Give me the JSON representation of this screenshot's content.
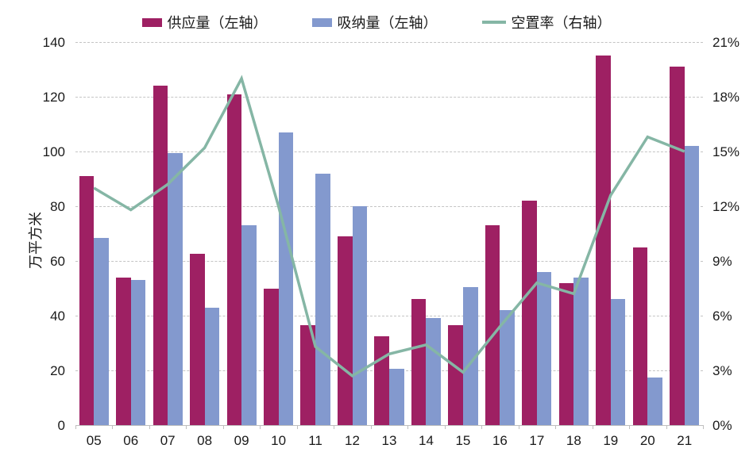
{
  "chart_data": {
    "type": "combo-bar-line",
    "title": "",
    "categories": [
      "05",
      "06",
      "07",
      "08",
      "09",
      "10",
      "11",
      "12",
      "13",
      "14",
      "15",
      "16",
      "17",
      "18",
      "19",
      "20",
      "21"
    ],
    "series": [
      {
        "name": "供应量（左轴）",
        "type": "bar",
        "axis": "left",
        "color": "#9E2063",
        "values": [
          91,
          54,
          124,
          62.5,
          121,
          50,
          36.5,
          69,
          32.5,
          46,
          36.5,
          73,
          82,
          52,
          135,
          65,
          131
        ]
      },
      {
        "name": "吸纳量（左轴）",
        "type": "bar",
        "axis": "left",
        "color": "#8399CE",
        "values": [
          68.5,
          53,
          99.5,
          43,
          73,
          107,
          92,
          80,
          20.5,
          39,
          50.5,
          42,
          56,
          54,
          46,
          17.5,
          102
        ]
      },
      {
        "name": "空置率（右轴）",
        "type": "line",
        "axis": "right",
        "color": "#85B6A5",
        "values": [
          13.0,
          11.8,
          13.2,
          15.2,
          19.0,
          12.0,
          4.3,
          2.7,
          3.9,
          4.4,
          2.9,
          5.4,
          7.8,
          7.2,
          12.6,
          15.8,
          15.0
        ]
      }
    ],
    "left_axis": {
      "label": "万平方米",
      "min": 0,
      "max": 140,
      "step": 20,
      "ticks": [
        "0",
        "20",
        "40",
        "60",
        "80",
        "100",
        "120",
        "140"
      ]
    },
    "right_axis": {
      "min": 0,
      "max": 21,
      "step": 3,
      "ticks": [
        "0%",
        "3%",
        "6%",
        "9%",
        "12%",
        "15%",
        "18%",
        "21%"
      ]
    },
    "grid": "horizontal-dashed",
    "legend_position": "top"
  },
  "colors": {
    "grid": "#c4c4c4",
    "axis": "#bfbfbf",
    "text": "#1a1a1a"
  }
}
